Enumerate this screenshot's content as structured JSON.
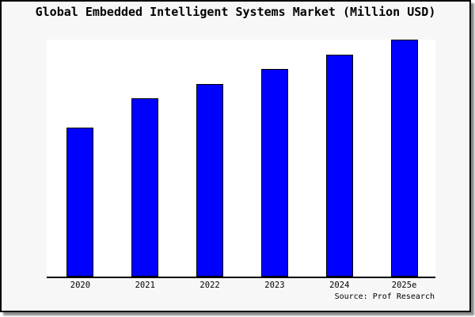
{
  "title": "Global Embedded Intelligent Systems Market (Million USD)",
  "source_caption": "Source: Prof Research",
  "colors": {
    "page_background": "#f7f7f7",
    "plot_background": "#ffffff",
    "bar_fill": "#0000ff",
    "bar_border": "#000000",
    "frame_border": "#000000",
    "axis": "#000000",
    "text": "#000000"
  },
  "chart_data": {
    "type": "bar",
    "title": "Global Embedded Intelligent Systems Market (Million USD)",
    "categories": [
      "2020",
      "2021",
      "2022",
      "2023",
      "2024",
      "2025e"
    ],
    "values": [
      62.8,
      75.1,
      81.4,
      87.7,
      93.7,
      100
    ],
    "values_note": "y-axis has no tick labels; values are relative heights estimated from bars, indexed to 2025e = 100",
    "xlabel": "",
    "ylabel": "",
    "ylim": [
      0,
      100
    ],
    "grid": false,
    "legend": false,
    "annotations": [
      "Source: Prof Research"
    ]
  }
}
